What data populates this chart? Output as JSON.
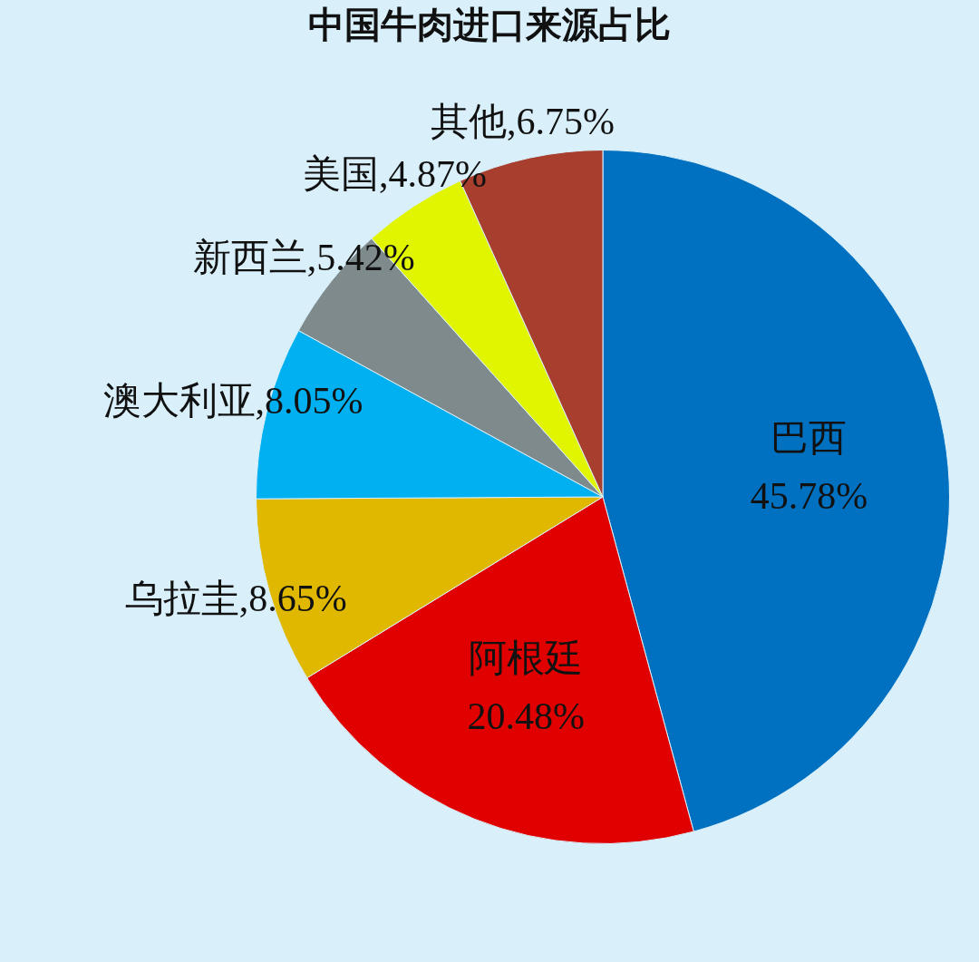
{
  "chart_data": {
    "type": "pie",
    "title": "中国牛肉进口来源占比",
    "categories": [
      "巴西",
      "阿根廷",
      "乌拉圭",
      "澳大利亚",
      "新西兰",
      "美国",
      "其他"
    ],
    "values": [
      45.78,
      20.48,
      8.65,
      8.05,
      5.42,
      4.87,
      6.75
    ],
    "value_labels": [
      "45.78%",
      "20.48%",
      "8.65%",
      "8.05%",
      "5.42%",
      "4.87%",
      "6.75%"
    ],
    "colors": [
      "#0070c0",
      "#e00000",
      "#e0b800",
      "#00b0f0",
      "#7f8a8c",
      "#e2f500",
      "#a83e2e"
    ]
  }
}
